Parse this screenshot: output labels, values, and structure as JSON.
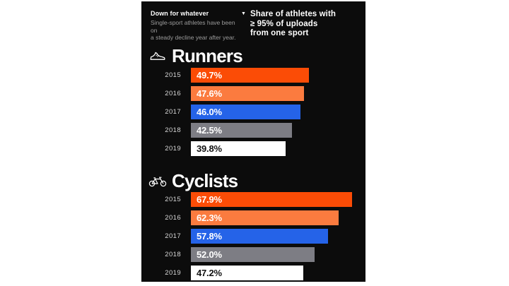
{
  "page": {
    "background": "#ffffff",
    "canvas_background": "#0c0c0c"
  },
  "header": {
    "kicker": "Down for whatever",
    "subtitle_lines": [
      "Single-sport athletes have been on",
      "a steady decline year after year."
    ],
    "legend_marker": "▼",
    "legend_lines": [
      "Share of athletes with",
      "≥ 95% of uploads",
      "from one sport"
    ]
  },
  "colors": {
    "orange_2015": "#fb4c06",
    "light_orange_2016": "#fb7b3f",
    "blue_2017": "#2563e8",
    "gray_2018": "#7d7d84",
    "white_2019": "#ffffff",
    "year_label": "#d6d6d6",
    "subtitle_gray": "#9c9c9c"
  },
  "chart_data": [
    {
      "type": "bar",
      "orientation": "horizontal",
      "title": "Runners",
      "icon": "running-shoe-icon",
      "categories": [
        "2015",
        "2016",
        "2017",
        "2018",
        "2019"
      ],
      "values": [
        49.7,
        47.6,
        46.0,
        42.5,
        39.8
      ],
      "value_labels": [
        "49.7%",
        "47.6%",
        "46.0%",
        "42.5%",
        "39.8%"
      ],
      "bar_colors": [
        "#fb4c06",
        "#fb7b3f",
        "#2563e8",
        "#7d7d84",
        "#ffffff"
      ],
      "label_colors": [
        "#ffffff",
        "#ffffff",
        "#ffffff",
        "#ffffff",
        "#111111"
      ],
      "xlim": [
        0,
        73.5
      ],
      "grid": false,
      "legend": "none"
    },
    {
      "type": "bar",
      "orientation": "horizontal",
      "title": "Cyclists",
      "icon": "bicycle-icon",
      "categories": [
        "2015",
        "2016",
        "2017",
        "2018",
        "2019"
      ],
      "values": [
        67.9,
        62.3,
        57.8,
        52.0,
        47.2
      ],
      "value_labels": [
        "67.9%",
        "62.3%",
        "57.8%",
        "52.0%",
        "47.2%"
      ],
      "bar_colors": [
        "#fb4c06",
        "#fb7b3f",
        "#2563e8",
        "#7d7d84",
        "#ffffff"
      ],
      "label_colors": [
        "#ffffff",
        "#ffffff",
        "#ffffff",
        "#ffffff",
        "#111111"
      ],
      "xlim": [
        0,
        73.5
      ],
      "grid": false,
      "legend": "none"
    }
  ]
}
